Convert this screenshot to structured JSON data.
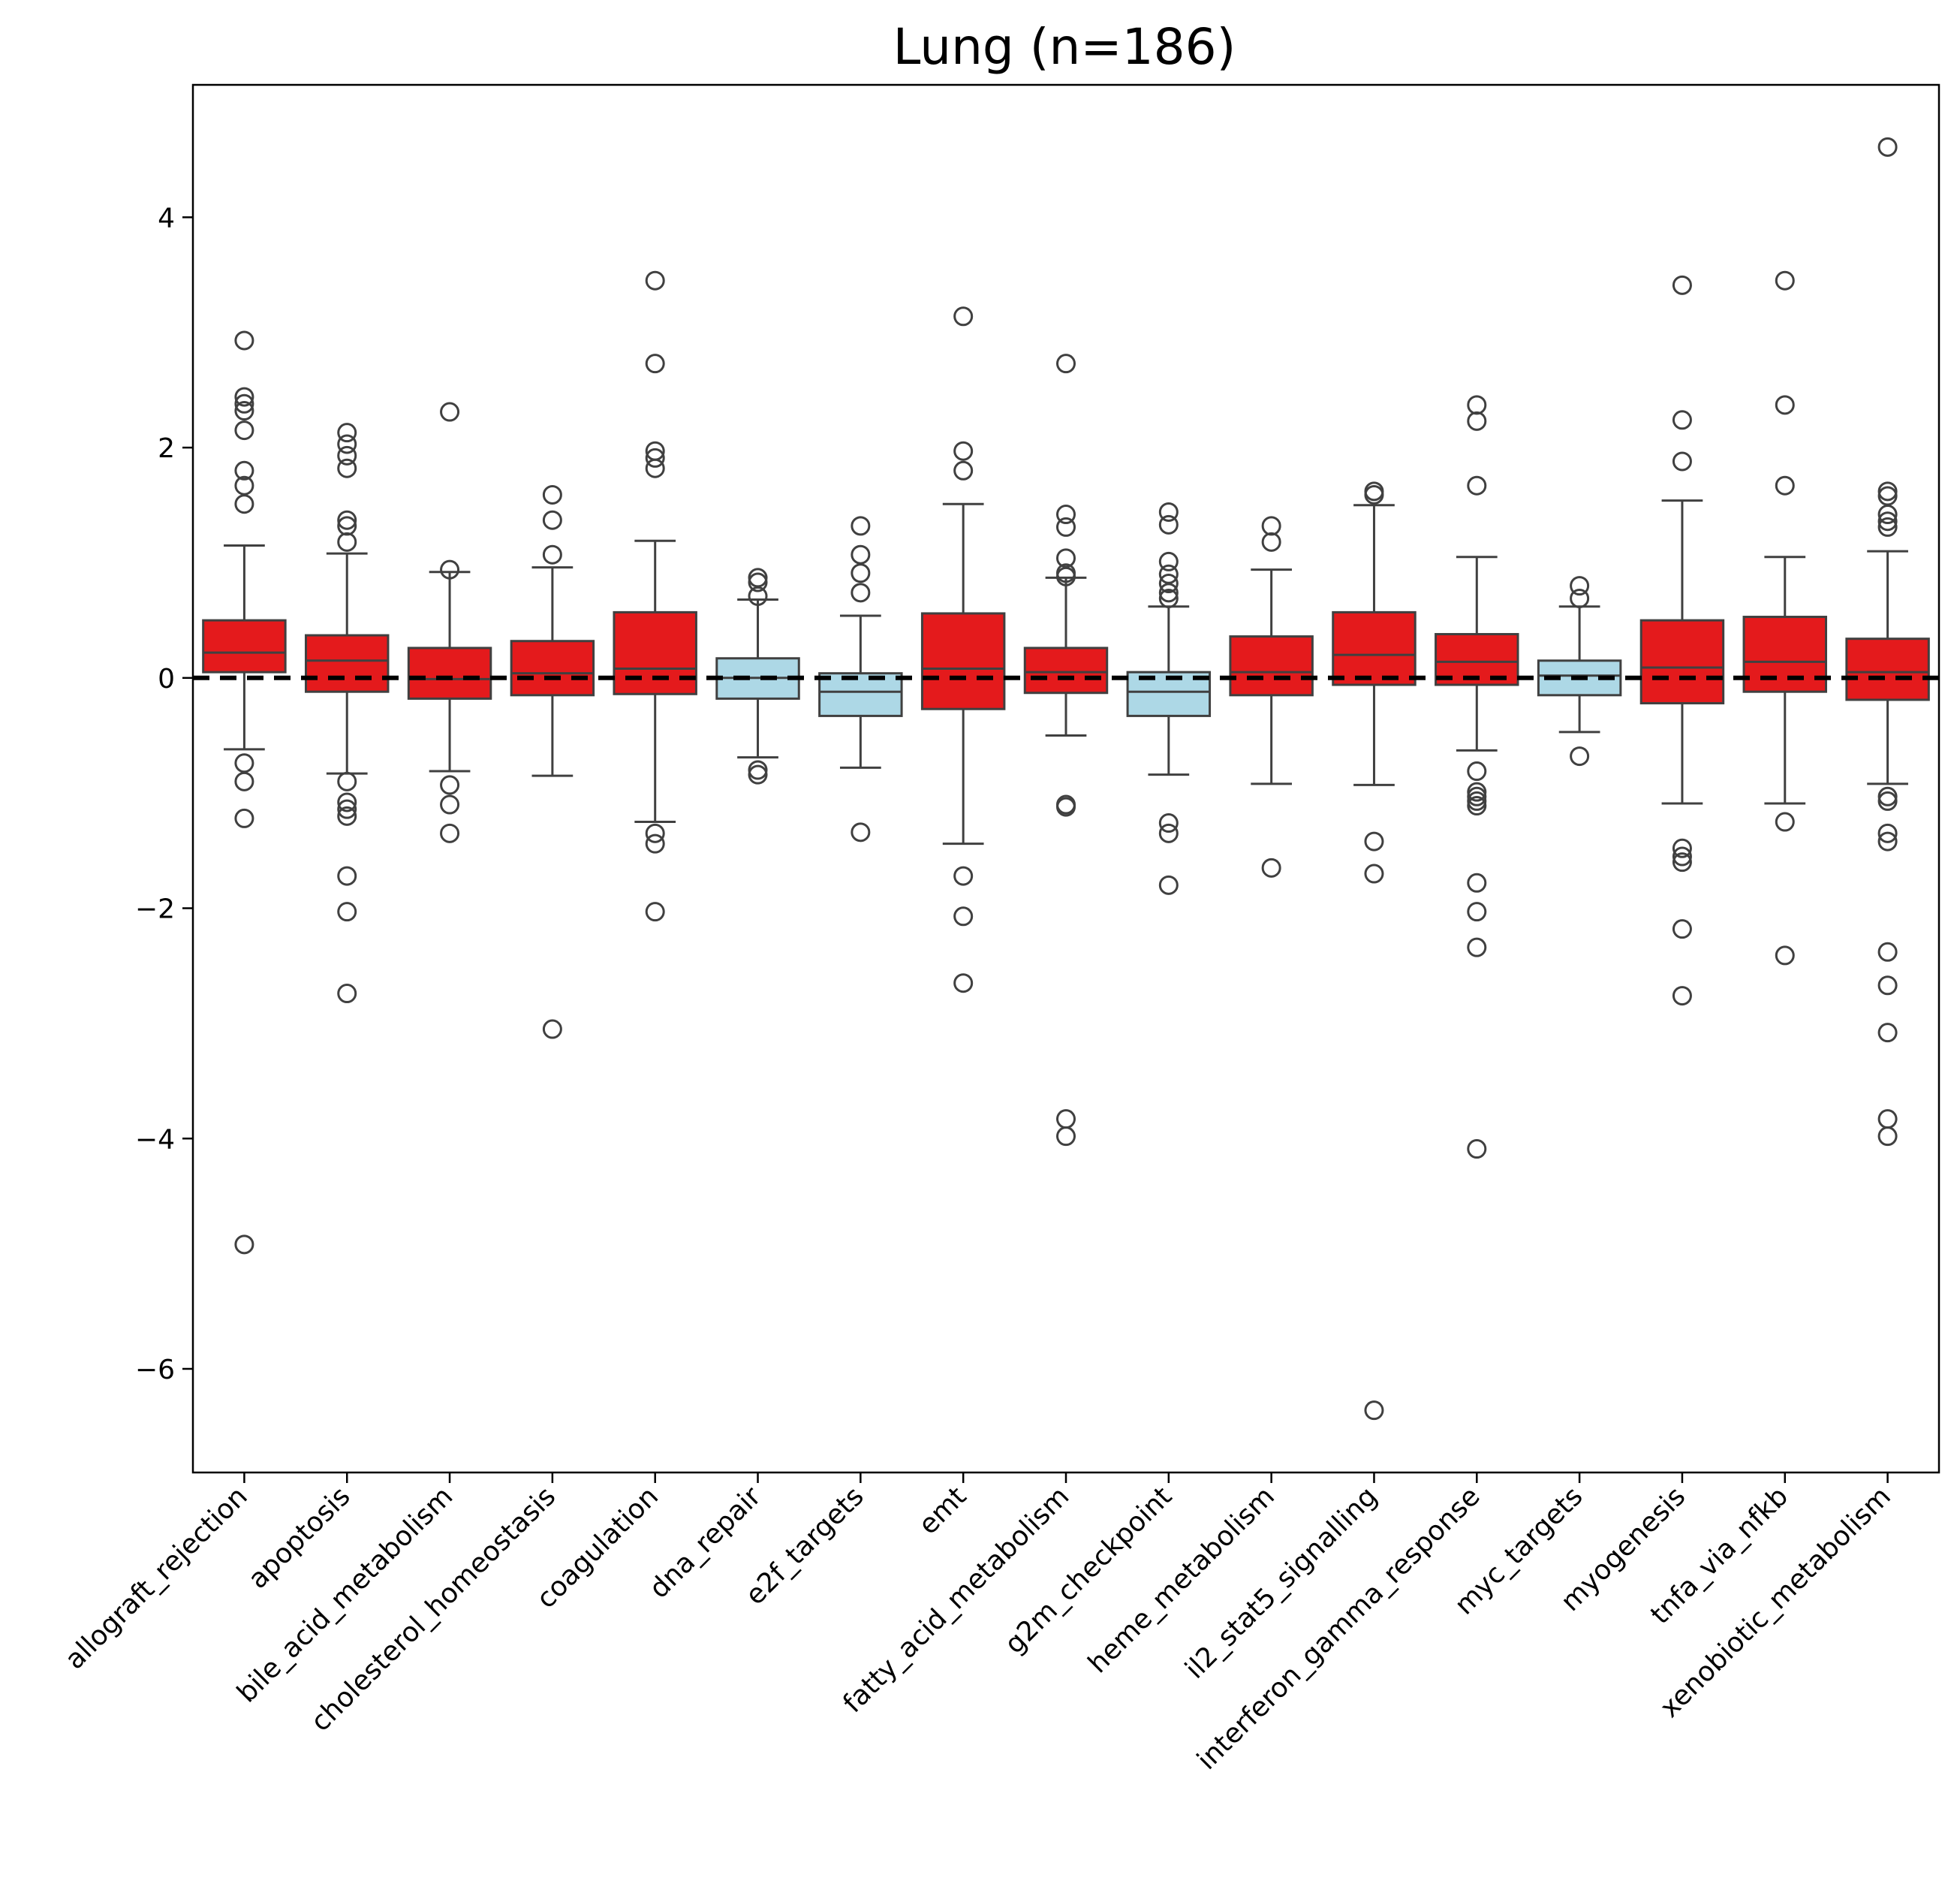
{
  "chart_data": {
    "type": "box",
    "title": "Lung (n=186)",
    "xlabel": "",
    "ylabel": "",
    "ylim": [
      -6.9,
      5.15
    ],
    "yticks": [
      4,
      2,
      0,
      -2,
      -4,
      -6
    ],
    "ytick_labels": [
      "4",
      "2",
      "0",
      "−2",
      "−4",
      "−6"
    ],
    "reference_line": 0,
    "colors": {
      "up": "#e41a1c",
      "down": "#add8e6",
      "edge": "#404040",
      "reference": "#000000"
    },
    "categories": [
      {
        "label": "allograft_rejection",
        "color": "up",
        "q1": 0.05,
        "median": 0.22,
        "q3": 0.5,
        "whisker_low": -0.62,
        "whisker_high": 1.15,
        "outliers": [
          2.93,
          2.44,
          2.38,
          2.32,
          2.15,
          1.8,
          1.67,
          1.51,
          -0.74,
          -0.9,
          -1.22,
          -4.92
        ]
      },
      {
        "label": "apoptosis",
        "color": "up",
        "q1": -0.12,
        "median": 0.15,
        "q3": 0.37,
        "whisker_low": -0.83,
        "whisker_high": 1.08,
        "outliers": [
          2.13,
          2.03,
          1.93,
          1.82,
          1.37,
          1.32,
          1.18,
          -0.9,
          -1.08,
          -1.14,
          -1.2,
          -1.72,
          -2.03,
          -2.74
        ]
      },
      {
        "label": "bile_acid_metabolism",
        "color": "up",
        "q1": -0.18,
        "median": -0.01,
        "q3": 0.26,
        "whisker_low": -0.81,
        "whisker_high": 0.92,
        "outliers": [
          2.31,
          0.94,
          -0.93,
          -1.1,
          -1.35
        ]
      },
      {
        "label": "cholesterol_homeostasis",
        "color": "up",
        "q1": -0.15,
        "median": 0.04,
        "q3": 0.32,
        "whisker_low": -0.85,
        "whisker_high": 0.96,
        "outliers": [
          1.59,
          1.37,
          1.07,
          -3.05
        ]
      },
      {
        "label": "coagulation",
        "color": "up",
        "q1": -0.14,
        "median": 0.08,
        "q3": 0.57,
        "whisker_low": -1.25,
        "whisker_high": 1.19,
        "outliers": [
          3.45,
          2.73,
          1.97,
          1.91,
          1.82,
          -1.35,
          -1.44,
          -2.03
        ]
      },
      {
        "label": "dna_repair",
        "color": "down",
        "q1": -0.18,
        "median": 0.0,
        "q3": 0.17,
        "whisker_low": -0.69,
        "whisker_high": 0.68,
        "outliers": [
          0.87,
          0.83,
          0.71,
          -0.8,
          -0.84
        ]
      },
      {
        "label": "e2f_targets",
        "color": "down",
        "q1": -0.33,
        "median": -0.12,
        "q3": 0.04,
        "whisker_low": -0.78,
        "whisker_high": 0.54,
        "outliers": [
          1.32,
          1.07,
          0.91,
          0.74,
          -1.34
        ]
      },
      {
        "label": "emt",
        "color": "up",
        "q1": -0.27,
        "median": 0.08,
        "q3": 0.56,
        "whisker_low": -1.44,
        "whisker_high": 1.51,
        "outliers": [
          3.14,
          1.97,
          1.8,
          -1.72,
          -2.07,
          -2.65
        ]
      },
      {
        "label": "fatty_acid_metabolism",
        "color": "up",
        "q1": -0.13,
        "median": 0.05,
        "q3": 0.26,
        "whisker_low": -0.5,
        "whisker_high": 0.87,
        "outliers": [
          2.73,
          1.42,
          1.31,
          1.04,
          0.91,
          0.88,
          -1.1,
          -1.12,
          -3.83,
          -3.98
        ]
      },
      {
        "label": "g2m_checkpoint",
        "color": "down",
        "q1": -0.33,
        "median": -0.12,
        "q3": 0.05,
        "whisker_low": -0.84,
        "whisker_high": 0.62,
        "outliers": [
          1.44,
          1.33,
          1.01,
          0.9,
          0.82,
          0.74,
          0.69,
          -1.26,
          -1.35,
          -1.8
        ]
      },
      {
        "label": "heme_metabolism",
        "color": "up",
        "q1": -0.15,
        "median": 0.05,
        "q3": 0.36,
        "whisker_low": -0.92,
        "whisker_high": 0.94,
        "outliers": [
          1.32,
          1.18,
          -1.65
        ]
      },
      {
        "label": "il2_stat5_signalling",
        "color": "up",
        "q1": -0.06,
        "median": 0.2,
        "q3": 0.57,
        "whisker_low": -0.93,
        "whisker_high": 1.5,
        "outliers": [
          1.62,
          1.59,
          -1.42,
          -1.7,
          -6.36
        ]
      },
      {
        "label": "interferon_gamma_response",
        "color": "up",
        "q1": -0.06,
        "median": 0.14,
        "q3": 0.38,
        "whisker_low": -0.63,
        "whisker_high": 1.05,
        "outliers": [
          2.37,
          2.23,
          1.67,
          -0.81,
          -0.99,
          -1.03,
          -1.07,
          -1.11,
          -1.78,
          -2.03,
          -2.34,
          -4.09
        ]
      },
      {
        "label": "myc_targets",
        "color": "down",
        "q1": -0.15,
        "median": 0.02,
        "q3": 0.15,
        "whisker_low": -0.47,
        "whisker_high": 0.62,
        "outliers": [
          0.8,
          0.69,
          -0.68
        ]
      },
      {
        "label": "myogenesis",
        "color": "up",
        "q1": -0.22,
        "median": 0.09,
        "q3": 0.5,
        "whisker_low": -1.09,
        "whisker_high": 1.54,
        "outliers": [
          3.41,
          2.24,
          1.88,
          -1.48,
          -1.55,
          -1.6,
          -2.18,
          -2.76
        ]
      },
      {
        "label": "tnfa_via_nfkb",
        "color": "up",
        "q1": -0.12,
        "median": 0.14,
        "q3": 0.53,
        "whisker_low": -1.09,
        "whisker_high": 1.05,
        "outliers": [
          3.45,
          2.37,
          1.67,
          -1.25,
          -2.41
        ]
      },
      {
        "label": "xenobiotic_metabolism",
        "color": "up",
        "q1": -0.19,
        "median": 0.05,
        "q3": 0.34,
        "whisker_low": -0.92,
        "whisker_high": 1.1,
        "outliers": [
          4.61,
          1.62,
          1.58,
          1.42,
          1.36,
          1.31,
          -1.03,
          -1.07,
          -1.35,
          -1.42,
          -2.38,
          -2.67,
          -3.08,
          -3.83,
          -3.98
        ]
      }
    ]
  }
}
